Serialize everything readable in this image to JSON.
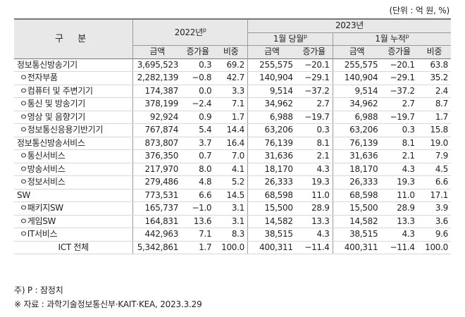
{
  "unit_note": "(단위 : 억 원, %)",
  "header": {
    "category": "구   분",
    "y2022": "2022년",
    "y2022_sup": "p",
    "y2023": "2023년",
    "month": "1월 당월",
    "month_sup": "p",
    "cumulative": "1월 누적",
    "cumulative_sup": "p",
    "sub_2022": [
      "금액",
      "증가율",
      "비중"
    ],
    "sub_month": [
      "금액",
      "증가율"
    ],
    "sub_cum": [
      "금액",
      "증가율",
      "비중"
    ]
  },
  "rows": [
    {
      "name": "정보통신방송기기",
      "sub": false,
      "values": [
        "3,695,523",
        "0.3",
        "69.2",
        "255,575",
        "−20.1",
        "255,575",
        "−20.1",
        "63.8"
      ]
    },
    {
      "name": "ㅇ전자부품",
      "sub": true,
      "values": [
        "2,282,139",
        "−0.8",
        "42.7",
        "140,904",
        "−29.1",
        "140,904",
        "−29.1",
        "35.2"
      ]
    },
    {
      "name": "ㅇ컴퓨터 및 주변기기",
      "sub": true,
      "values": [
        "174,387",
        "0.0",
        "3.3",
        "9,514",
        "−37.2",
        "9,514",
        "−37.2",
        "2.4"
      ]
    },
    {
      "name": "ㅇ통신 및 방송기기",
      "sub": true,
      "values": [
        "378,199",
        "−2.4",
        "7.1",
        "34,962",
        "2.7",
        "34,962",
        "2.7",
        "8.7"
      ]
    },
    {
      "name": "ㅇ영상 및 음향기기",
      "sub": true,
      "values": [
        "92,924",
        "0.9",
        "1.7",
        "6,988",
        "−19.7",
        "6,988",
        "−19.7",
        "1.7"
      ]
    },
    {
      "name": "ㅇ정보통신응용기반기기",
      "sub": true,
      "values": [
        "767,874",
        "5.4",
        "14.4",
        "63,206",
        "0.3",
        "63,206",
        "0.3",
        "15.8"
      ]
    },
    {
      "name": "정보통신방송서비스",
      "sub": false,
      "values": [
        "873,807",
        "3.7",
        "16.4",
        "76,139",
        "8.1",
        "76,139",
        "8.1",
        "19.0"
      ]
    },
    {
      "name": "ㅇ통신서비스",
      "sub": true,
      "values": [
        "376,350",
        "0.7",
        "7.0",
        "31,636",
        "2.1",
        "31,636",
        "2.1",
        "7.9"
      ]
    },
    {
      "name": "ㅇ방송서비스",
      "sub": true,
      "values": [
        "217,970",
        "8.0",
        "4.1",
        "18,170",
        "4.3",
        "18,170",
        "4.3",
        "4.5"
      ]
    },
    {
      "name": "ㅇ정보서비스",
      "sub": true,
      "values": [
        "279,486",
        "4.8",
        "5.2",
        "26,333",
        "19.3",
        "26,333",
        "19.3",
        "6.6"
      ]
    },
    {
      "name": "SW",
      "sub": false,
      "values": [
        "773,531",
        "6.6",
        "14.5",
        "68,598",
        "11.0",
        "68,598",
        "11.0",
        "17.1"
      ]
    },
    {
      "name": "ㅇ패키지SW",
      "sub": true,
      "values": [
        "165,737",
        "−1.0",
        "3.1",
        "15,500",
        "28.9",
        "15,500",
        "28.9",
        "3.9"
      ]
    },
    {
      "name": "ㅇ게임SW",
      "sub": true,
      "values": [
        "164,831",
        "13.6",
        "3.1",
        "14,582",
        "13.3",
        "14,582",
        "13.3",
        "3.6"
      ]
    },
    {
      "name": "ㅇIT서비스",
      "sub": true,
      "values": [
        "442,963",
        "7.1",
        "8.3",
        "38,515",
        "4.3",
        "38,515",
        "4.3",
        "9.6"
      ]
    },
    {
      "name": "ICT 전체",
      "sub": false,
      "values": [
        "5,342,861",
        "1.7",
        "100.0",
        "400,311",
        "−11.4",
        "400,311",
        "−11.4",
        "100.0"
      ]
    }
  ],
  "notes": {
    "note1": "주) P : 잠정치",
    "note2": "※ 자료 : 과학기술정보통신부·KAIT·KEA, 2023.3.29"
  }
}
